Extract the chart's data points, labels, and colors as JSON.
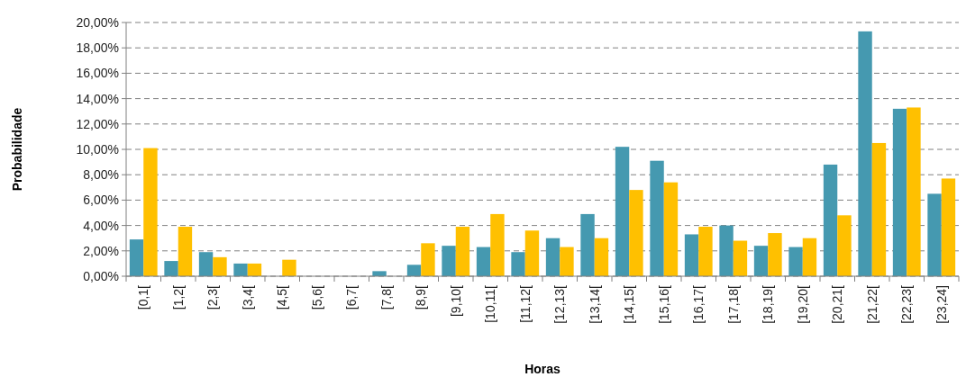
{
  "chart_data": {
    "type": "bar",
    "xlabel": "Horas",
    "ylabel": "Probabilidade",
    "categories": [
      "[0,1[",
      "[1,2[",
      "[2,3[",
      "[3,4[",
      "[4,5[",
      "[5,6[",
      "[6,7[",
      "[7,8[",
      "[8,9[",
      "[9,10[",
      "[10,11[",
      "[11,12[",
      "[12,13[",
      "[13,14[",
      "[14,15[",
      "[15,16[",
      "[16,17[",
      "[17,18[",
      "[18,19[",
      "[19,20[",
      "[20,21[",
      "[21,22[",
      "[22,23[",
      "[23,24]"
    ],
    "series": [
      {
        "color": "#4599b0",
        "values": [
          2.9,
          1.2,
          1.9,
          1.0,
          0,
          0,
          0,
          0.4,
          0.9,
          2.4,
          2.3,
          1.9,
          3.0,
          4.9,
          10.2,
          9.1,
          3.3,
          4.0,
          2.4,
          2.3,
          8.8,
          19.3,
          13.2,
          6.5
        ]
      },
      {
        "color": "#ffc000",
        "values": [
          10.1,
          3.9,
          1.5,
          1.0,
          1.3,
          0,
          0,
          0,
          2.6,
          3.9,
          4.9,
          3.6,
          2.3,
          3.0,
          6.8,
          7.4,
          3.9,
          2.8,
          3.4,
          3.0,
          4.8,
          10.5,
          13.3,
          7.7
        ]
      }
    ],
    "ylim": [
      0,
      20
    ],
    "yticks": [
      {
        "value": 0,
        "label": "0,00%"
      },
      {
        "value": 2,
        "label": "2,00%"
      },
      {
        "value": 4,
        "label": "4,00%"
      },
      {
        "value": 6,
        "label": "6,00%"
      },
      {
        "value": 8,
        "label": "8,00%"
      },
      {
        "value": 10,
        "label": "10,00%"
      },
      {
        "value": 12,
        "label": "12,00%"
      },
      {
        "value": 14,
        "label": "14,00%"
      },
      {
        "value": 16,
        "label": "16,00%"
      },
      {
        "value": 18,
        "label": "18,00%"
      },
      {
        "value": 20,
        "label": "20,00%"
      }
    ],
    "grid": "y",
    "line_style": "dashed"
  }
}
